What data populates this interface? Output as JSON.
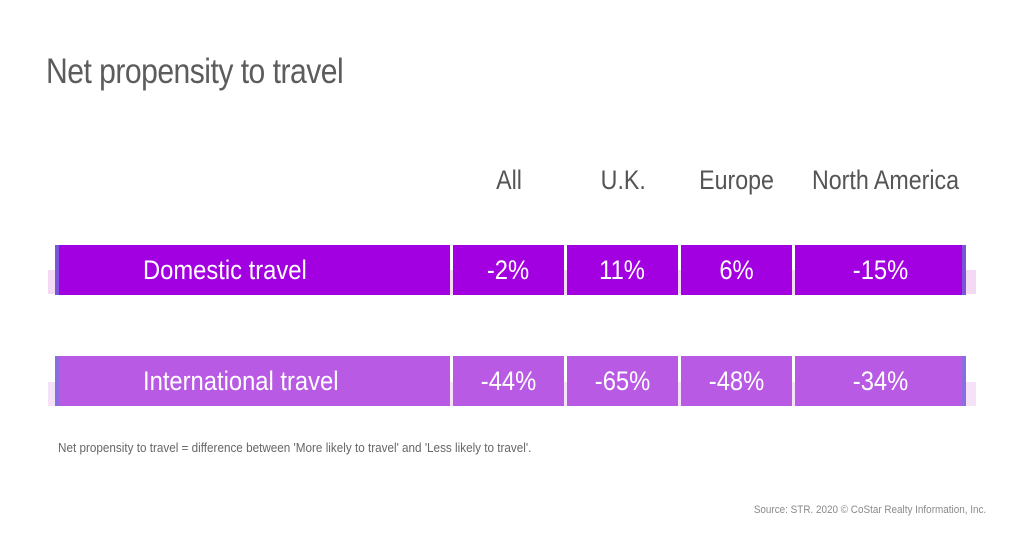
{
  "chart_data": {
    "type": "table",
    "title": "Net propensity to travel",
    "columns": [
      "All",
      "U.K.",
      "Europe",
      "North America"
    ],
    "rows": [
      {
        "label": "Domestic travel",
        "values": [
          "-2%",
          "11%",
          "6%",
          "-15%"
        ]
      },
      {
        "label": "International travel",
        "values": [
          "-44%",
          "-65%",
          "-48%",
          "-34%"
        ]
      }
    ],
    "note": "Net propensity to travel = difference between 'More likely to travel' and 'Less likely to travel'.",
    "source": "Source: STR. 2020 © CoStar Realty Information, Inc."
  },
  "colors": {
    "domestic_fill": "#a200e0",
    "domestic_band": "#f4d8f4",
    "international_fill": "#b85ae4",
    "international_band": "#f6e2f8",
    "edge_accent": "#7a55d8"
  }
}
